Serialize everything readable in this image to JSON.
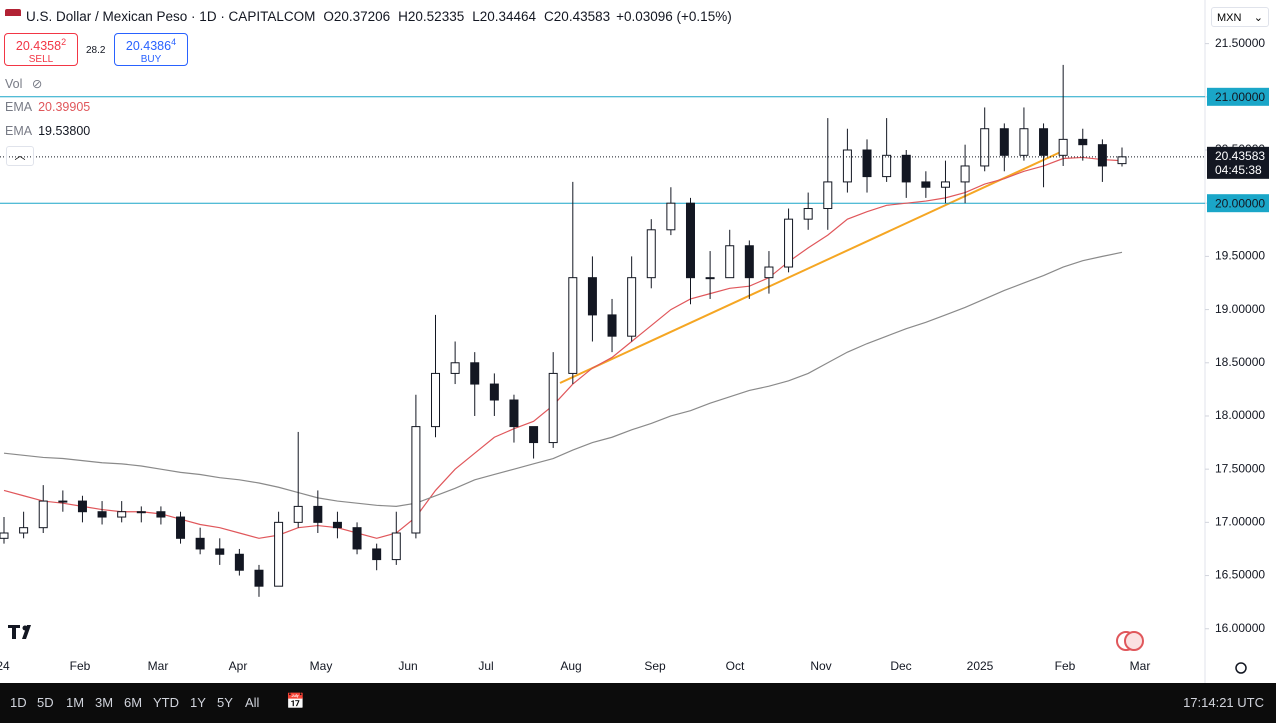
{
  "chart_data": {
    "type": "candlestick",
    "title": "U.S. Dollar / Mexican Peso · 1D · CAPITALCOM",
    "open": [
      16.85,
      16.9,
      16.95,
      17.2,
      17.2,
      17.1,
      17.05,
      17.1,
      17.1,
      17.05,
      16.85,
      16.75,
      16.7,
      16.55,
      16.4,
      17.0,
      17.15,
      17.0,
      16.95,
      16.75,
      16.65,
      16.9,
      17.9,
      18.4,
      18.5,
      18.3,
      18.15,
      17.9,
      17.75,
      18.4,
      19.3,
      18.95,
      18.75,
      19.3,
      19.75,
      20.0,
      19.3,
      19.3,
      19.6,
      19.3,
      19.4,
      19.85,
      19.95,
      20.2,
      20.5,
      20.25,
      20.45,
      20.2,
      20.15,
      20.2,
      20.35,
      20.7,
      20.45,
      20.7,
      20.45,
      20.6,
      20.55,
      20.37206
    ],
    "high": [
      17.05,
      17.1,
      17.35,
      17.3,
      17.25,
      17.2,
      17.2,
      17.15,
      17.15,
      17.1,
      16.95,
      16.85,
      16.75,
      16.6,
      17.1,
      17.85,
      17.3,
      17.1,
      17.0,
      16.8,
      17.1,
      18.2,
      18.95,
      18.7,
      18.6,
      18.4,
      18.2,
      17.9,
      18.6,
      20.2,
      19.5,
      19.1,
      19.5,
      19.85,
      20.15,
      20.05,
      19.55,
      19.75,
      19.65,
      19.55,
      19.95,
      20.1,
      20.8,
      20.7,
      20.6,
      20.8,
      20.5,
      20.3,
      20.4,
      20.55,
      20.9,
      20.75,
      20.9,
      20.75,
      21.3,
      20.7,
      20.6,
      20.52335
    ],
    "low": [
      16.8,
      16.85,
      16.9,
      17.1,
      17.0,
      16.98,
      17.0,
      17.0,
      16.98,
      16.8,
      16.7,
      16.6,
      16.5,
      16.3,
      16.4,
      16.95,
      16.9,
      16.85,
      16.7,
      16.55,
      16.6,
      16.85,
      17.8,
      18.3,
      18.0,
      18.0,
      17.75,
      17.6,
      17.7,
      18.3,
      18.7,
      18.6,
      18.7,
      19.2,
      19.7,
      19.05,
      19.1,
      19.3,
      19.1,
      19.15,
      19.35,
      19.75,
      19.75,
      20.1,
      20.1,
      20.2,
      20.05,
      20.05,
      20.0,
      20.0,
      20.3,
      20.3,
      20.4,
      20.15,
      20.35,
      20.4,
      20.2,
      20.34464
    ],
    "close": [
      16.9,
      16.95,
      17.2,
      17.2,
      17.1,
      17.05,
      17.1,
      17.1,
      17.05,
      16.85,
      16.75,
      16.7,
      16.55,
      16.4,
      17.0,
      17.15,
      17.0,
      16.95,
      16.75,
      16.65,
      16.9,
      17.9,
      18.4,
      18.5,
      18.3,
      18.15,
      17.9,
      17.75,
      18.4,
      19.3,
      18.95,
      18.75,
      19.3,
      19.75,
      20.0,
      19.3,
      19.3,
      19.6,
      19.3,
      19.4,
      19.85,
      19.95,
      20.2,
      20.5,
      20.25,
      20.45,
      20.2,
      20.15,
      20.2,
      20.35,
      20.7,
      20.45,
      20.7,
      20.45,
      20.6,
      20.55,
      20.35,
      20.43583
    ],
    "up_color": "#ffffff",
    "down_color": "#131722",
    "series": [
      {
        "name": "EMA",
        "color": "#e0575b",
        "value_label": "20.39905",
        "values": [
          17.3,
          17.25,
          17.2,
          17.18,
          17.15,
          17.12,
          17.1,
          17.1,
          17.08,
          17.03,
          16.98,
          16.95,
          16.9,
          16.85,
          16.88,
          16.95,
          16.97,
          16.95,
          16.9,
          16.85,
          16.9,
          17.05,
          17.3,
          17.5,
          17.65,
          17.8,
          17.88,
          17.95,
          18.1,
          18.3,
          18.45,
          18.55,
          18.7,
          18.85,
          19.0,
          19.1,
          19.15,
          19.2,
          19.22,
          19.3,
          19.45,
          19.58,
          19.7,
          19.85,
          19.92,
          19.98,
          20.0,
          20.02,
          20.05,
          20.1,
          20.18,
          20.23,
          20.3,
          20.35,
          20.42,
          20.43,
          20.41,
          20.39905
        ]
      },
      {
        "name": "EMA",
        "color": "#8a8a8a",
        "value_label": "19.53800",
        "values": [
          17.65,
          17.63,
          17.61,
          17.6,
          17.58,
          17.56,
          17.55,
          17.53,
          17.5,
          17.47,
          17.45,
          17.42,
          17.4,
          17.37,
          17.33,
          17.28,
          17.23,
          17.2,
          17.18,
          17.16,
          17.15,
          17.18,
          17.25,
          17.32,
          17.4,
          17.45,
          17.5,
          17.55,
          17.6,
          17.68,
          17.75,
          17.8,
          17.87,
          17.93,
          18.0,
          18.05,
          18.12,
          18.18,
          18.24,
          18.28,
          18.33,
          18.4,
          18.5,
          18.6,
          18.68,
          18.75,
          18.82,
          18.88,
          18.95,
          19.02,
          19.1,
          19.18,
          19.25,
          19.32,
          19.4,
          19.46,
          19.5,
          19.538
        ]
      }
    ],
    "ylim": [
      15.49,
      21.91
    ],
    "yticks": [
      {
        "value": 16,
        "label": "16.00000"
      },
      {
        "value": 16.5,
        "label": "16.50000"
      },
      {
        "value": 17,
        "label": "17.00000"
      },
      {
        "value": 17.5,
        "label": "17.50000"
      },
      {
        "value": 18,
        "label": "18.00000"
      },
      {
        "value": 18.5,
        "label": "18.50000"
      },
      {
        "value": 19,
        "label": "19.00000"
      },
      {
        "value": 19.5,
        "label": "19.50000"
      },
      {
        "value": 20,
        "label": "20.00000"
      },
      {
        "value": 20.5,
        "label": "20.50000"
      },
      {
        "value": 21,
        "label": "21.00000"
      },
      {
        "value": 21.5,
        "label": "21.50000"
      }
    ],
    "levels": [
      {
        "value": 21,
        "label": "21.00000"
      },
      {
        "value": 20,
        "label": "20.00000"
      }
    ],
    "level_color": "#1aa6c8",
    "last_price": {
      "value": 20.43583,
      "label": "20.43583"
    },
    "countdown": "04:45:38",
    "x_labels": [
      "24",
      "Feb",
      "Mar",
      "Apr",
      "May",
      "Jun",
      "Jul",
      "Aug",
      "Sep",
      "Oct",
      "Nov",
      "Dec",
      "2025",
      "Feb",
      "Mar"
    ]
  },
  "header": {
    "ohlc": [
      {
        "key": "O",
        "value": "20.37206"
      },
      {
        "key": "H",
        "value": "20.52335"
      },
      {
        "key": "L",
        "value": "20.34464"
      },
      {
        "key": "C",
        "value": "20.43583"
      }
    ],
    "change": "+0.03096 (+0.15%)"
  },
  "sell": {
    "price": "20.4358",
    "pip": "2",
    "label": "SELL"
  },
  "spread": "28.2",
  "buy": {
    "price": "20.4386",
    "pip": "4",
    "label": "BUY"
  },
  "volume_label": "Vol",
  "currency": "MXN",
  "periods": [
    "1D",
    "5D",
    "1M",
    "3M",
    "6M",
    "YTD",
    "1Y",
    "5Y",
    "All"
  ],
  "clock": "17:14:21 UTC"
}
